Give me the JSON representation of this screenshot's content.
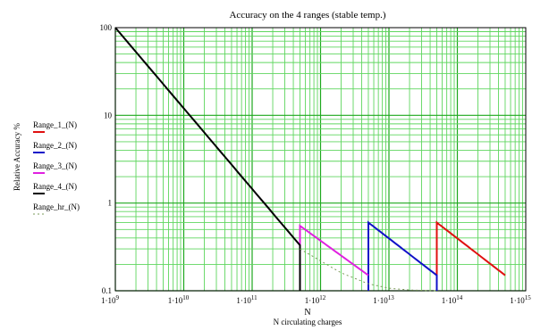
{
  "chart_data": {
    "type": "line",
    "title": "Accuracy on the 4 ranges (stable temp.)",
    "xlabel": "N",
    "xlabel_secondary": "N circulating charges",
    "ylabel": "Relative Accuracy %",
    "x_scale": "log",
    "y_scale": "log",
    "xlim": [
      1000000000.0,
      1000000000000000.0
    ],
    "ylim": [
      0.1,
      100
    ],
    "grid": true,
    "legend_placement": "left",
    "x_ticks": [
      {
        "value": 1000000000.0,
        "mant": "1·10",
        "exp": "9"
      },
      {
        "value": 10000000000.0,
        "mant": "1·10",
        "exp": "10"
      },
      {
        "value": 100000000000.0,
        "mant": "1·10",
        "exp": "11"
      },
      {
        "value": 1000000000000.0,
        "mant": "1·10",
        "exp": "12"
      },
      {
        "value": 10000000000000.0,
        "mant": "1·10",
        "exp": "13"
      },
      {
        "value": 100000000000000.0,
        "mant": "1·10",
        "exp": "14"
      },
      {
        "value": 1000000000000000.0,
        "mant": "1·10",
        "exp": "15"
      }
    ],
    "y_ticks": [
      {
        "value": 100,
        "label": "100"
      },
      {
        "value": 10,
        "label": "10"
      },
      {
        "value": 1,
        "label": "1"
      },
      {
        "value": 0.1,
        "label": "0.1"
      }
    ],
    "series": [
      {
        "name": "Range_1_(N)",
        "color": "#e01010",
        "dash": "solid",
        "x": [
          50000000000000.0,
          50000000000000.0,
          500000000000000.0
        ],
        "y": [
          0.1,
          0.6,
          0.15
        ]
      },
      {
        "name": "Range_2_(N)",
        "color": "#1010c8",
        "dash": "solid",
        "x": [
          5000000000000.0,
          5000000000000.0,
          50000000000000.0,
          50000000000000.0
        ],
        "y": [
          0.1,
          0.6,
          0.15,
          0.1
        ]
      },
      {
        "name": "Range_3_(N)",
        "color": "#e020e0",
        "dash": "solid",
        "x": [
          500000000000.0,
          500000000000.0,
          5000000000000.0
        ],
        "y": [
          0.1,
          0.55,
          0.15
        ]
      },
      {
        "name": "Range_4_(N)",
        "color": "#000000",
        "dash": "solid",
        "x": [
          1000000000.0,
          500000000000.0,
          500000000000.0
        ],
        "y": [
          100,
          0.33,
          0.1
        ]
      },
      {
        "name": "Range_hr_(N)",
        "color": "#7a9a58",
        "dash": "dotted",
        "x": [
          500000000000.0,
          2000000000000.0,
          5000000000000.0,
          10000000000000.0,
          20000000000000.0,
          50000000000000.0
        ],
        "y": [
          0.3,
          0.16,
          0.12,
          0.107,
          0.102,
          0.1
        ]
      }
    ]
  }
}
